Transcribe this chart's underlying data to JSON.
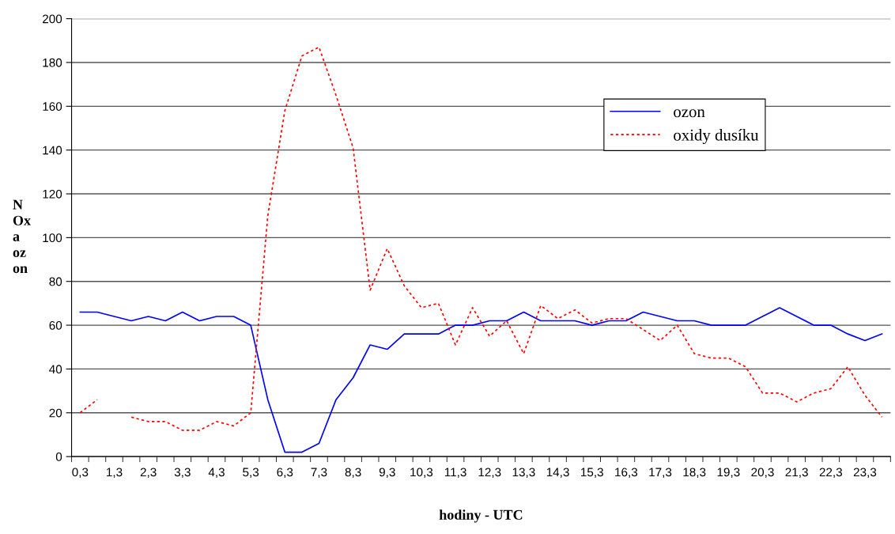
{
  "chart_data": {
    "type": "line",
    "xlabel": "hodiny - UTC",
    "ylabel": "N\nOx\na\noz\non",
    "categories": [
      "0,3",
      null,
      "1,3",
      null,
      "2,3",
      null,
      "3,3",
      null,
      "4,3",
      null,
      "5,3",
      null,
      "6,3",
      null,
      "7,3",
      null,
      "8,3",
      null,
      "9,3",
      null,
      "10,3",
      null,
      "11,3",
      null,
      "12,3",
      null,
      "13,3",
      null,
      "14,3",
      null,
      "15,3",
      null,
      "16,3",
      null,
      "17,3",
      null,
      "18,3",
      null,
      "19,3",
      null,
      "20,3",
      null,
      "21,3",
      null,
      "22,3",
      null,
      "23,3",
      null
    ],
    "series": [
      {
        "name": "ozon",
        "color": "#0000ff",
        "line_style": "solid",
        "values": [
          66,
          66,
          64,
          62,
          64,
          62,
          66,
          62,
          64,
          64,
          60,
          26,
          2,
          2,
          6,
          26,
          36,
          51,
          49,
          56,
          56,
          56,
          60,
          60,
          62,
          62,
          66,
          62,
          62,
          62,
          60,
          62,
          62,
          66,
          64,
          62,
          62,
          60,
          60,
          60,
          64,
          68,
          64,
          60,
          60,
          56,
          53,
          56
        ]
      },
      {
        "name": "oxidy dusíku",
        "color": "#ff0000",
        "line_style": "dotted",
        "values": [
          20,
          26,
          null,
          18,
          16,
          16,
          12,
          12,
          16,
          14,
          20,
          110,
          158,
          183,
          187,
          165,
          141,
          76,
          95,
          78,
          68,
          70,
          51,
          68,
          55,
          62,
          47,
          69,
          63,
          67,
          61,
          63,
          63,
          58,
          53,
          60,
          47,
          45,
          45,
          41,
          29,
          29,
          25,
          29,
          31,
          41,
          28,
          18
        ]
      }
    ],
    "ylim": [
      0,
      200
    ],
    "yticks": [
      0,
      20,
      40,
      60,
      80,
      100,
      120,
      140,
      160,
      180,
      200
    ],
    "grid": "y",
    "legend": "right",
    "marker": "none"
  }
}
